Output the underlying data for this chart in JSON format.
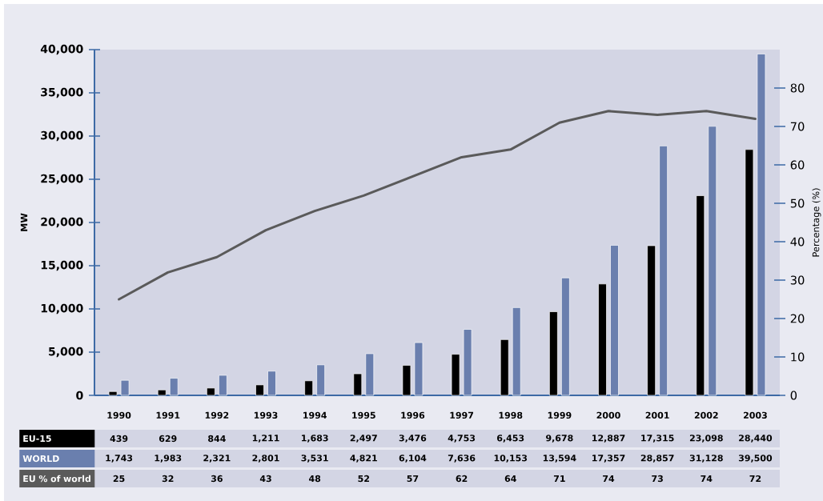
{
  "chart_data": {
    "type": "bar",
    "categories": [
      "1990",
      "1991",
      "1992",
      "1993",
      "1994",
      "1995",
      "1996",
      "1997",
      "1998",
      "1999",
      "2000",
      "2001",
      "2002",
      "2003"
    ],
    "series": [
      {
        "name": "EU-15",
        "color": "#000000",
        "values": [
          439,
          629,
          844,
          1211,
          1683,
          2497,
          3476,
          4753,
          6453,
          9678,
          12887,
          17315,
          23098,
          28440
        ],
        "value_labels": [
          "439",
          "629",
          "844",
          "1,211",
          "1,683",
          "2,497",
          "3,476",
          "4,753",
          "6,453",
          "9,678",
          "12,887",
          "17,315",
          "23,098",
          "28,440"
        ]
      },
      {
        "name": "WORLD",
        "color": "#6a7fae",
        "values": [
          1743,
          1983,
          2321,
          2801,
          3531,
          4821,
          6104,
          7636,
          10153,
          13594,
          17357,
          28857,
          31128,
          39500
        ],
        "value_labels": [
          "1,743",
          "1,983",
          "2,321",
          "2,801",
          "3,531",
          "4,821",
          "6,104",
          "7,636",
          "10,153",
          "13,594",
          "17,357",
          "28,857",
          "31,128",
          "39,500"
        ]
      },
      {
        "name": "EU % of world",
        "type": "line",
        "axis": "y2",
        "color": "#5a5a5a",
        "values": [
          25,
          32,
          36,
          43,
          48,
          52,
          57,
          62,
          64,
          71,
          74,
          73,
          74,
          72
        ],
        "value_labels": [
          "25",
          "32",
          "36",
          "43",
          "48",
          "52",
          "57",
          "62",
          "64",
          "71",
          "74",
          "73",
          "74",
          "72"
        ]
      }
    ],
    "ylabel": "MW",
    "y2label": "Percentage (%)",
    "ylim": [
      0,
      40000
    ],
    "yticks": [
      0,
      {
        "value": 5000,
        "label": "5,000"
      },
      {
        "value": 10000,
        "label": "10,000"
      },
      {
        "value": 15000,
        "label": "15,000"
      },
      {
        "value": 20000,
        "label": "20,000"
      },
      {
        "value": 25000,
        "label": "25,000"
      },
      {
        "value": 30000,
        "label": "30,000"
      },
      {
        "value": 35000,
        "label": "35,000"
      },
      {
        "value": 40000,
        "label": "40,000"
      }
    ],
    "y2lim": [
      0,
      90
    ],
    "y2ticks": [
      0,
      10,
      20,
      30,
      40,
      50,
      60,
      70,
      80
    ],
    "legend": "bottom left"
  }
}
